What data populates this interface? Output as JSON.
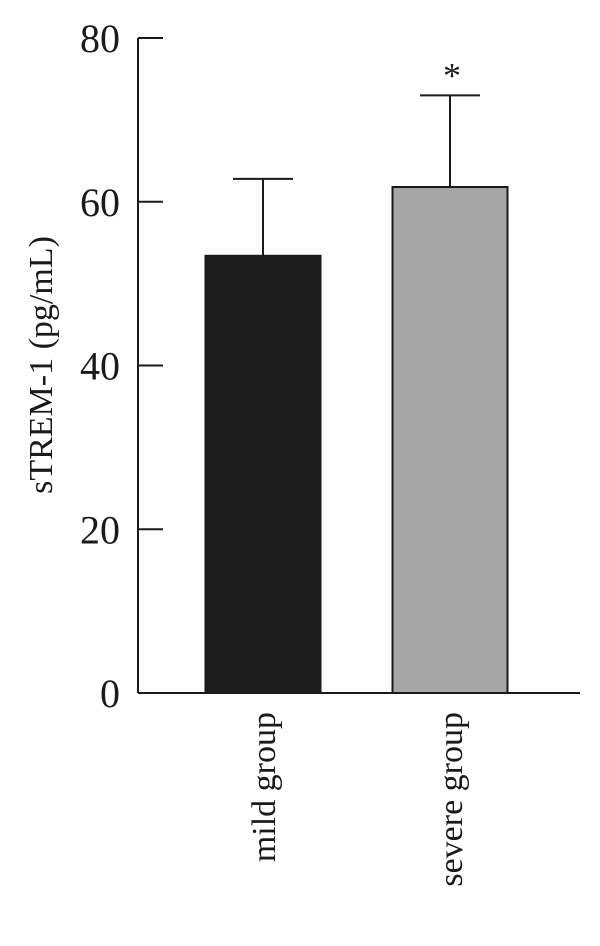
{
  "chart_data": {
    "type": "bar",
    "y_label": "sTREM-1 (pg/mL)",
    "categories": [
      "mild group",
      "severe group"
    ],
    "values": [
      53.4,
      61.8
    ],
    "errors": [
      9.4,
      11.2
    ],
    "colors": [
      "#1c1c1c",
      "#a6a6a6"
    ],
    "annotations": [
      "",
      "*"
    ],
    "ylim": [
      0,
      80
    ],
    "yticks": [
      0,
      20,
      40,
      60,
      80
    ]
  }
}
